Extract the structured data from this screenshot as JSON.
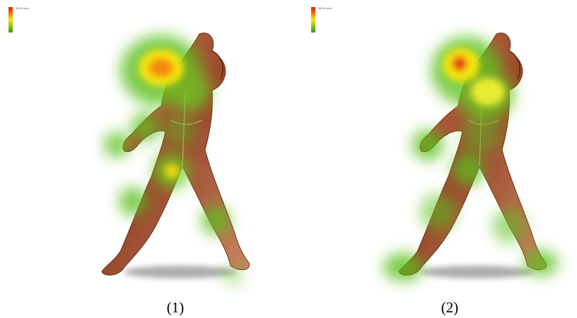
{
  "panels": [
    {
      "legend_label": "38.00 secs",
      "caption": "(1)"
    },
    {
      "legend_label": "38.00 secs",
      "caption": "(2)"
    }
  ]
}
